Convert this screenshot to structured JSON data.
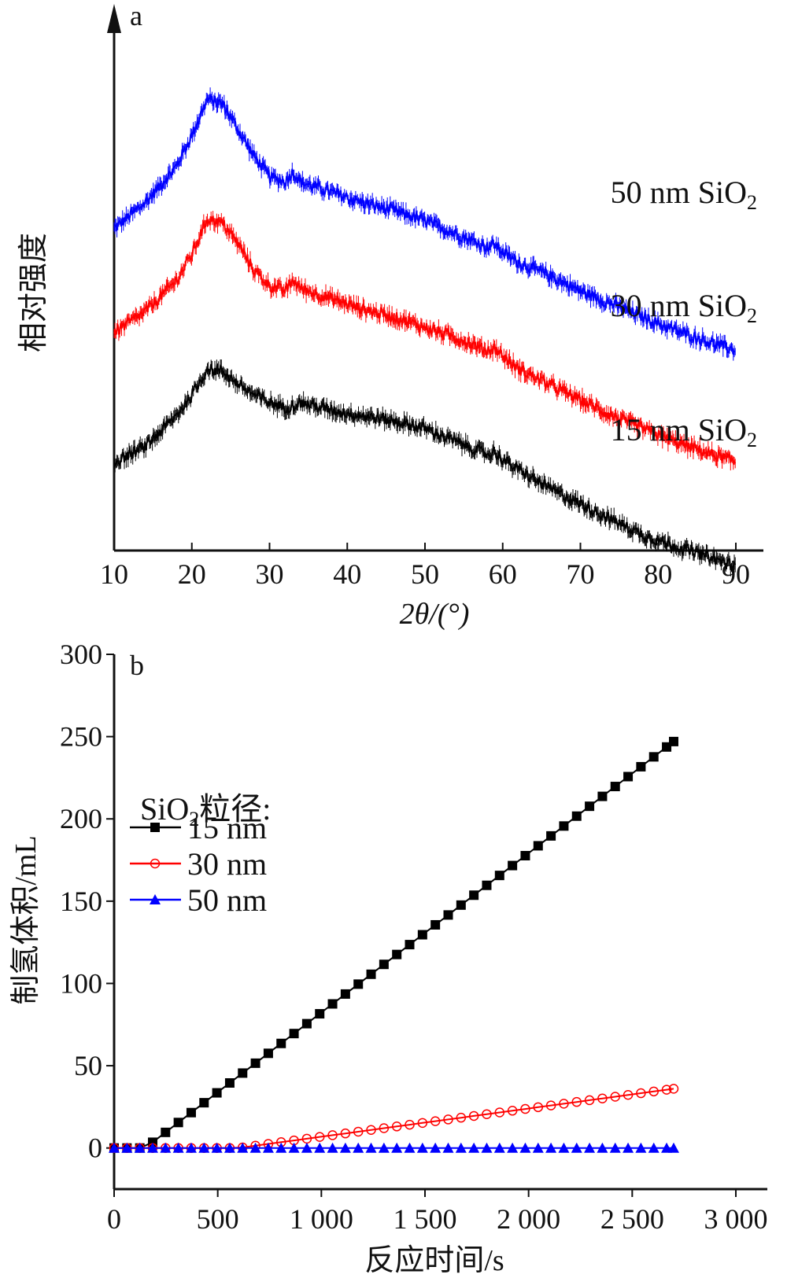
{
  "chart_data": [
    {
      "panel": "a",
      "type": "line",
      "xlabel": "2θ/(°)",
      "ylabel": "相对强度",
      "xlim": [
        10,
        90
      ],
      "xticks": [
        10,
        20,
        30,
        40,
        50,
        60,
        70,
        80,
        90
      ],
      "y_ticks_shown": false,
      "series": [
        {
          "name": "50 nm SiO2",
          "label_main": "50 nm SiO",
          "label_sub": "2",
          "color": "#0000ff",
          "x": [
            10,
            14,
            18,
            20,
            22,
            24,
            26,
            28,
            30,
            32,
            33,
            34,
            38,
            42,
            46,
            50,
            54,
            58,
            59,
            60,
            62,
            66,
            70,
            74,
            78,
            82,
            86,
            90
          ],
          "y": [
            0.62,
            0.67,
            0.74,
            0.8,
            0.87,
            0.86,
            0.81,
            0.76,
            0.72,
            0.71,
            0.73,
            0.71,
            0.69,
            0.67,
            0.655,
            0.635,
            0.61,
            0.585,
            0.59,
            0.575,
            0.555,
            0.53,
            0.5,
            0.475,
            0.45,
            0.425,
            0.405,
            0.385
          ]
        },
        {
          "name": "30 nm SiO2",
          "label_main": "30 nm SiO",
          "label_sub": "2",
          "color": "#ff0000",
          "x": [
            10,
            14,
            18,
            20,
            22,
            24,
            26,
            28,
            30,
            32,
            33,
            34,
            38,
            42,
            46,
            50,
            54,
            58,
            59,
            60,
            62,
            66,
            70,
            74,
            78,
            82,
            86,
            90
          ],
          "y": [
            0.42,
            0.46,
            0.52,
            0.57,
            0.64,
            0.63,
            0.59,
            0.54,
            0.51,
            0.5,
            0.52,
            0.505,
            0.485,
            0.465,
            0.45,
            0.43,
            0.41,
            0.385,
            0.39,
            0.375,
            0.35,
            0.32,
            0.29,
            0.26,
            0.235,
            0.21,
            0.19,
            0.17
          ]
        },
        {
          "name": "15 nm SiO2",
          "label_main": "15 nm SiO",
          "label_sub": "2",
          "color": "#000000",
          "x": [
            10,
            14,
            18,
            20,
            22,
            24,
            26,
            28,
            30,
            32,
            34,
            38,
            42,
            46,
            50,
            54,
            58,
            59,
            60,
            62,
            66,
            70,
            74,
            78,
            82,
            86,
            90
          ],
          "y": [
            0.17,
            0.2,
            0.26,
            0.3,
            0.35,
            0.345,
            0.32,
            0.3,
            0.285,
            0.275,
            0.285,
            0.27,
            0.26,
            0.25,
            0.235,
            0.21,
            0.185,
            0.19,
            0.175,
            0.155,
            0.12,
            0.09,
            0.06,
            0.03,
            0.01,
            -0.01,
            -0.03
          ]
        }
      ]
    },
    {
      "panel": "b",
      "type": "line",
      "xlabel": "反应时间/s",
      "ylabel": "制氢体积/mL",
      "xlim": [
        0,
        3000
      ],
      "ylim": [
        -25,
        300
      ],
      "xticks": [
        0,
        500,
        1000,
        1500,
        2000,
        2500,
        3000
      ],
      "xtick_labels": [
        "0",
        "500",
        "1 000",
        "1 500",
        "2 000",
        "2 500",
        "3 000"
      ],
      "yticks": [
        0,
        50,
        100,
        150,
        200,
        250,
        300
      ],
      "ytick_labels": [
        "0",
        "50",
        "100",
        "150",
        "200",
        "250",
        "300"
      ],
      "legend": {
        "title_main": "SiO",
        "title_sub": "2",
        "title_suffix": "粒径:",
        "placement": "upper-left"
      },
      "series": [
        {
          "name": "15 nm",
          "color": "#000000",
          "marker": "filled-square",
          "x": [
            0,
            150,
            2700
          ],
          "y": [
            0,
            0,
            247
          ],
          "marker_step": 62
        },
        {
          "name": "30 nm",
          "color": "#ff0000",
          "marker": "open-circle",
          "x": [
            0,
            600,
            2700
          ],
          "y": [
            0,
            0,
            36
          ],
          "marker_step": 62
        },
        {
          "name": "50 nm",
          "color": "#0000ff",
          "marker": "filled-triangle",
          "x": [
            0,
            2700
          ],
          "y": [
            0,
            0
          ],
          "marker_step": 62
        }
      ]
    }
  ]
}
